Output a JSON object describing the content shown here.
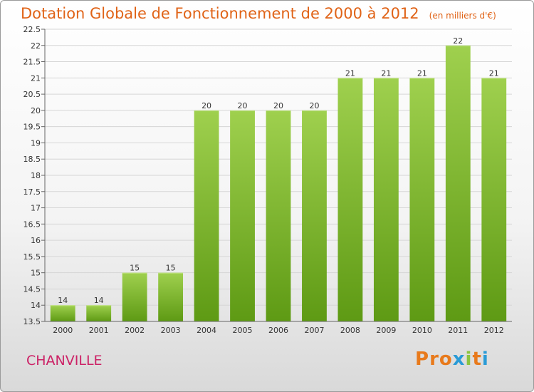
{
  "header": {
    "title": "Dotation Globale de Fonctionnement de 2000 à 2012",
    "unit": "(en milliers d'€)"
  },
  "footer": {
    "place": "CHANVILLE",
    "logo": "Proxiti"
  },
  "colors": {
    "title": "#e06317",
    "place": "#cc2266",
    "bar_light": "#9fd04e",
    "bar_dark": "#5e9a14"
  },
  "chart_data": {
    "type": "bar",
    "categories": [
      "2000",
      "2001",
      "2002",
      "2003",
      "2004",
      "2005",
      "2006",
      "2007",
      "2008",
      "2009",
      "2010",
      "2011",
      "2012"
    ],
    "values": [
      14,
      14,
      15,
      15,
      20,
      20,
      20,
      20,
      21,
      21,
      21,
      22,
      21
    ],
    "data_labels": [
      "14",
      "14",
      "15",
      "15",
      "20",
      "20",
      "20",
      "20",
      "21",
      "21",
      "21",
      "22",
      "21"
    ],
    "y_ticks": [
      "13.5",
      "14",
      "14.5",
      "15",
      "15.5",
      "16",
      "16.5",
      "17",
      "17.5",
      "18",
      "18.5",
      "19",
      "19.5",
      "20",
      "20.5",
      "21",
      "21.5",
      "22",
      "22.5"
    ],
    "ylim": [
      13.5,
      22.5
    ],
    "grid": true,
    "legend": "none"
  }
}
